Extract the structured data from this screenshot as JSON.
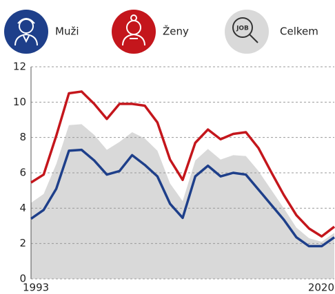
{
  "chart_data": {
    "type": "line",
    "categories": [
      "1993",
      null,
      null,
      null,
      null,
      null,
      null,
      null,
      null,
      null,
      null,
      null,
      null,
      null,
      null,
      null,
      null,
      null,
      null,
      null,
      null,
      null,
      null,
      null,
      "2020"
    ],
    "series": [
      {
        "name": "Muži",
        "color": "#1e3f8a",
        "values": [
          3.4,
          3.9,
          5.1,
          7.25,
          7.3,
          6.7,
          5.9,
          6.1,
          7.0,
          6.45,
          5.8,
          4.25,
          3.45,
          5.8,
          6.4,
          5.8,
          6.0,
          5.9,
          5.05,
          4.2,
          3.35,
          2.35,
          1.85,
          1.85,
          2.35
        ]
      },
      {
        "name": "Ženy",
        "color": "#c4161c",
        "values": [
          5.45,
          5.9,
          8.1,
          10.5,
          10.6,
          9.9,
          9.05,
          9.9,
          9.9,
          9.8,
          8.85,
          6.75,
          5.6,
          7.7,
          8.45,
          7.9,
          8.2,
          8.3,
          7.4,
          6.05,
          4.75,
          3.6,
          2.85,
          2.4,
          2.95
        ]
      },
      {
        "name": "Celkem",
        "color": "#d9d9d9",
        "values": [
          4.3,
          4.8,
          6.5,
          8.7,
          8.75,
          8.15,
          7.3,
          7.75,
          8.3,
          7.95,
          7.25,
          5.4,
          4.4,
          6.7,
          7.35,
          6.75,
          7.0,
          6.95,
          6.1,
          5.05,
          4.0,
          2.9,
          2.3,
          2.1,
          2.6
        ]
      }
    ],
    "ylim": [
      0,
      12
    ],
    "yticks": [
      0,
      2,
      4,
      6,
      8,
      10,
      12
    ],
    "grid": true
  }
}
